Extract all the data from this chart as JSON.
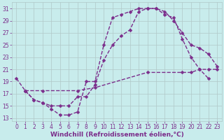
{
  "xlabel": "Windchill (Refroidissement éolien,°C)",
  "bg_color": "#c8ecec",
  "line_color": "#7b2d8b",
  "xlim_min": -0.5,
  "xlim_max": 23.5,
  "ylim_min": 12.5,
  "ylim_max": 32.0,
  "yticks": [
    13,
    15,
    17,
    19,
    21,
    23,
    25,
    27,
    29,
    31
  ],
  "xticks": [
    0,
    1,
    2,
    3,
    4,
    5,
    6,
    7,
    8,
    9,
    10,
    11,
    12,
    13,
    14,
    15,
    16,
    17,
    18,
    19,
    20,
    21,
    22,
    23
  ],
  "series1_x": [
    0,
    1,
    2,
    3,
    4,
    5,
    6,
    7,
    8,
    9,
    10,
    11,
    12,
    13,
    14,
    15,
    16,
    17,
    18,
    19,
    20,
    21,
    22
  ],
  "series1_y": [
    19.5,
    17.5,
    16.0,
    15.5,
    14.5,
    13.5,
    13.5,
    14.0,
    19.0,
    19.0,
    25.0,
    29.5,
    30.0,
    30.5,
    31.0,
    31.0,
    31.0,
    30.0,
    29.5,
    26.0,
    23.0,
    21.0,
    19.5
  ],
  "series2_x": [
    1,
    2,
    3,
    4,
    5,
    6,
    7,
    8,
    9,
    10,
    11,
    12,
    13,
    14,
    15,
    16,
    17,
    18,
    19,
    20,
    21,
    22,
    23
  ],
  "series2_y": [
    17.5,
    16.0,
    15.5,
    15.0,
    15.0,
    15.0,
    16.5,
    16.5,
    18.5,
    22.5,
    25.0,
    26.5,
    27.5,
    30.5,
    31.0,
    31.0,
    30.5,
    29.0,
    27.0,
    25.0,
    24.5,
    23.5,
    21.5
  ],
  "series3_x": [
    1,
    3,
    7,
    9,
    15,
    19,
    20,
    21,
    22,
    23
  ],
  "series3_y": [
    17.5,
    17.5,
    17.5,
    18.0,
    20.5,
    20.5,
    20.5,
    21.0,
    21.0,
    21.0
  ],
  "grid_color": "#b0c8c8",
  "font_color": "#7b2d8b",
  "markersize": 2.5,
  "linewidth": 1.0,
  "xlabel_fontsize": 6.5,
  "tick_fontsize": 5.5
}
